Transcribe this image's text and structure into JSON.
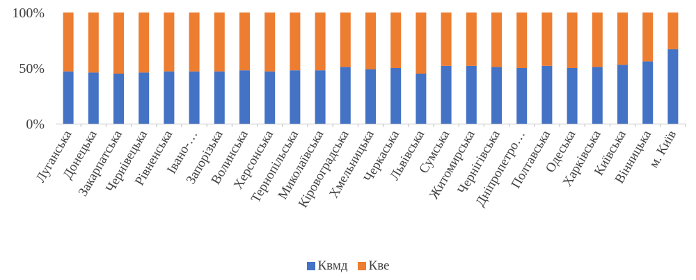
{
  "chart_data": {
    "type": "bar",
    "stacked": "percent",
    "categories": [
      "Луганська",
      "Донецька",
      "Закарпатська",
      "Чернівецька",
      "Рівненська",
      "Івано-…",
      "Запорізька",
      "Волинська",
      "Херсонська",
      "Тернопільська",
      "Миколаївська",
      "Кіровоградська",
      "Хмельницька",
      "Черкаська",
      "Львівська",
      "Сумська",
      "Житомирська",
      "Чернігівська",
      "Дніпропетро…",
      "Полтавська",
      "Одеська",
      "Харківська",
      "Київська",
      "Вінницька",
      "м. Київ"
    ],
    "series": [
      {
        "name": "Квмд",
        "color": "#4472C4",
        "values": [
          47,
          46,
          45,
          46,
          47,
          47,
          47,
          48,
          47,
          48,
          48,
          51,
          49,
          50,
          45,
          52,
          52,
          51,
          50,
          52,
          50,
          51,
          53,
          56,
          67
        ]
      },
      {
        "name": "Кве",
        "color": "#ED7D31",
        "values": [
          53,
          54,
          55,
          54,
          53,
          53,
          53,
          52,
          53,
          52,
          52,
          49,
          51,
          50,
          55,
          48,
          48,
          49,
          50,
          48,
          50,
          49,
          47,
          44,
          33
        ]
      }
    ],
    "yticks": [
      "0%",
      "50%",
      "100%"
    ],
    "ylim": [
      0,
      100
    ],
    "grid": false,
    "legend": "bottom"
  }
}
